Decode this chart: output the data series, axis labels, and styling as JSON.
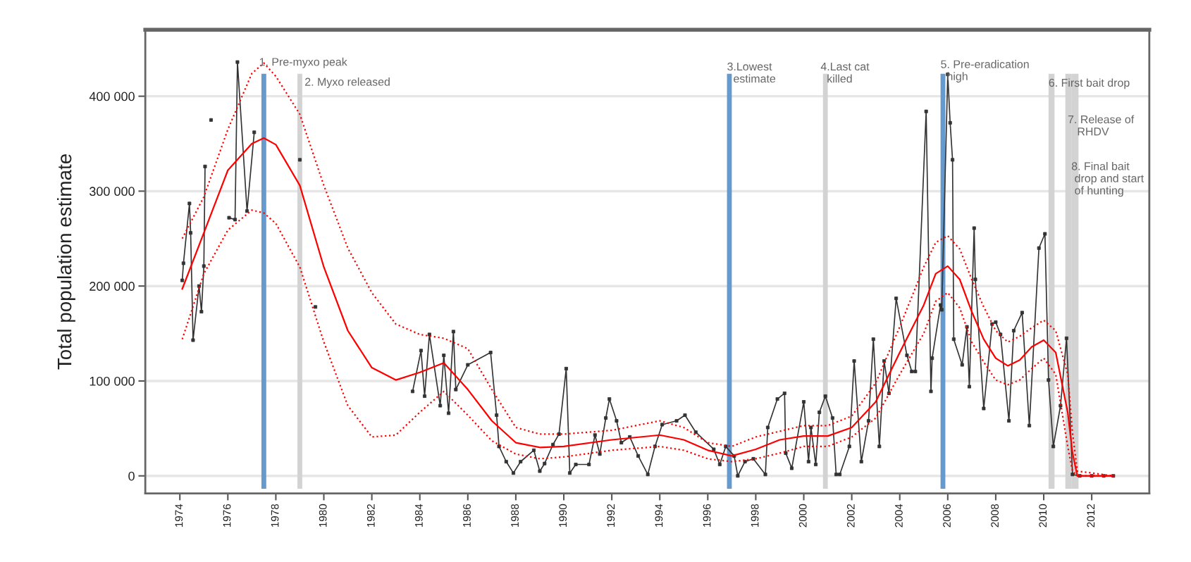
{
  "chart_data": {
    "type": "line",
    "ylabel": "Total population estimate",
    "xlim": [
      1972.56,
      2014.4
    ],
    "ylim": [
      -18500,
      470000
    ],
    "xticks": [
      1974,
      1976,
      1978,
      1980,
      1982,
      1984,
      1986,
      1988,
      1990,
      1992,
      1994,
      1996,
      1998,
      2000,
      2002,
      2004,
      2006,
      2008,
      2010,
      2012
    ],
    "yticks": [
      {
        "value": 0,
        "label": "0"
      },
      {
        "value": 100000,
        "label": "100 000"
      },
      {
        "value": 200000,
        "label": "200 000"
      },
      {
        "value": 300000,
        "label": "300 000"
      },
      {
        "value": 400000,
        "label": "400 000"
      }
    ],
    "grid": "y",
    "legend": false,
    "series": [
      {
        "color": "#333333",
        "marker": "square",
        "line_style": "solid",
        "x": [
          1974.1,
          1974.15,
          1974.4,
          1974.45,
          1974.55,
          1974.8,
          1974.9,
          1975.0,
          1975.05,
          1975.2,
          1975.3,
          1975.6,
          1976.05,
          1976.3,
          1976.4,
          1976.8,
          1977.1,
          1978.0,
          1979.0,
          1979.3,
          1979.65,
          1981.0,
          1983.7,
          1984.05,
          1984.2,
          1984.4,
          1984.85,
          1985.0,
          1985.2,
          1985.4,
          1985.5,
          1986.0,
          1986.95,
          1987.2,
          1987.3,
          1987.6,
          1987.9,
          1988.2,
          1988.75,
          1989.0,
          1989.2,
          1989.55,
          1989.8,
          1990.1,
          1990.25,
          1990.5,
          1991.05,
          1991.3,
          1991.5,
          1991.75,
          1991.9,
          1992.2,
          1992.4,
          1992.75,
          1993.1,
          1993.5,
          1993.8,
          1994.1,
          1994.7,
          1995.05,
          1995.5,
          1996.25,
          1996.5,
          1996.75,
          1997.1,
          1997.25,
          1997.55,
          1997.9,
          1998.4,
          1998.5,
          1998.9,
          1999.2,
          1999.25,
          1999.5,
          2000.0,
          2000.2,
          2000.3,
          2000.5,
          2000.65,
          2000.9,
          2001.2,
          2001.35,
          2001.5,
          2001.9,
          2002.1,
          2002.4,
          2002.7,
          2002.9,
          2003.15,
          2003.35,
          2003.55,
          2003.85,
          2004.3,
          2004.5,
          2004.65,
          2005.1,
          2005.3,
          2005.35,
          2005.7,
          2005.75,
          2006.0,
          2006.1,
          2006.2,
          2006.25,
          2006.6,
          2006.8,
          2006.9,
          2007.1,
          2007.15,
          2007.5,
          2007.85,
          2008.0,
          2008.2,
          2008.55,
          2008.75,
          2009.1,
          2009.4,
          2009.8,
          2010.05,
          2010.2,
          2010.4,
          2010.7,
          2010.95,
          2011.2,
          2011.5,
          2012.0,
          2012.5,
          2012.9
        ],
        "values": [
          206000,
          224000,
          287000,
          256000,
          143000,
          200000,
          173000,
          221000,
          326000,
          null,
          375000,
          null,
          272000,
          270000,
          436000,
          279000,
          362000,
          null,
          333000,
          null,
          178000,
          null,
          89000,
          132000,
          84000,
          149000,
          74000,
          127000,
          66000,
          152000,
          91000,
          117000,
          130000,
          64000,
          31000,
          15000,
          3000,
          15000,
          27000,
          5000,
          13000,
          33000,
          44000,
          113000,
          3000,
          12000,
          12000,
          43000,
          23000,
          61000,
          81000,
          58000,
          35000,
          41000,
          21000,
          1500,
          31000,
          54000,
          58000,
          64000,
          46000,
          28000,
          12000,
          31000,
          21000,
          0,
          15000,
          18000,
          1500,
          51000,
          81000,
          87000,
          24000,
          8000,
          78000,
          15000,
          51000,
          12000,
          67000,
          84000,
          61000,
          1500,
          1500,
          31000,
          121000,
          15000,
          58000,
          144000,
          31000,
          121000,
          87000,
          187000,
          127000,
          110000,
          110000,
          384000,
          89000,
          124000,
          180000,
          175000,
          423000,
          372000,
          333000,
          144000,
          117000,
          157000,
          94000,
          261000,
          207000,
          71000,
          160000,
          162000,
          149000,
          58000,
          153000,
          172000,
          53000,
          240000,
          255000,
          101000,
          31000,
          74000,
          145000,
          1500,
          0,
          0,
          0,
          0
        ]
      },
      {
        "color": "#ff0000",
        "line_style": "solid",
        "x": [
          1974.1,
          1975,
          1976,
          1977,
          1977.5,
          1978,
          1979,
          1980,
          1981,
          1982,
          1983,
          1984,
          1985,
          1986,
          1987,
          1988,
          1989,
          1990,
          1992,
          1994,
          1995,
          1996,
          1997,
          1998,
          1999,
          2000,
          2001,
          2002,
          2003,
          2004,
          2005,
          2005.5,
          2006,
          2006.5,
          2007,
          2007.5,
          2008,
          2008.5,
          2009,
          2009.5,
          2010,
          2010.5,
          2011,
          2011.2,
          2011.4,
          2012.9
        ],
        "values": [
          197000,
          256000,
          322000,
          350000,
          356000,
          349000,
          306000,
          220000,
          153000,
          114000,
          101000,
          109000,
          119000,
          91000,
          58000,
          35000,
          30000,
          31000,
          38000,
          43000,
          38000,
          27000,
          21000,
          28000,
          38000,
          42000,
          42000,
          51000,
          78000,
          130000,
          180000,
          213000,
          221000,
          207000,
          173000,
          144000,
          124000,
          116000,
          122000,
          136000,
          143000,
          130000,
          67000,
          24000,
          0,
          0
        ]
      },
      {
        "color": "#ff0000",
        "line_style": "dotted",
        "x": [
          1974.1,
          1975,
          1976,
          1977,
          1977.5,
          1978,
          1979,
          1980,
          1981,
          1982,
          1983,
          1984,
          1985,
          1986,
          1987,
          1988,
          1989,
          1990,
          1992,
          1994,
          1995,
          1996,
          1997,
          1998,
          1999,
          2000,
          2001,
          2002,
          2003,
          2004,
          2005,
          2005.5,
          2006,
          2006.5,
          2007,
          2007.5,
          2008,
          2008.5,
          2009,
          2009.5,
          2010,
          2010.5,
          2011,
          2011.2,
          2011.4,
          2012.9
        ],
        "values": [
          250000,
          294000,
          365000,
          424000,
          435000,
          421000,
          381000,
          306000,
          240000,
          193000,
          160000,
          149000,
          145000,
          134000,
          91000,
          51000,
          44000,
          44000,
          48000,
          58000,
          51000,
          35000,
          31000,
          41000,
          47000,
          53000,
          53000,
          63000,
          98000,
          157000,
          220000,
          246000,
          253000,
          239000,
          207000,
          178000,
          153000,
          141000,
          147000,
          156000,
          164000,
          153000,
          107000,
          45000,
          5000,
          0
        ]
      },
      {
        "color": "#ff0000",
        "line_style": "dotted",
        "x": [
          1974.1,
          1975,
          1976,
          1977,
          1977.5,
          1978,
          1979,
          1980,
          1981,
          1982,
          1983,
          1984,
          1985,
          1986,
          1987,
          1988,
          1989,
          1990,
          1992,
          1994,
          1995,
          1996,
          1997,
          1998,
          1999,
          2000,
          2001,
          2002,
          2003,
          2004,
          2005,
          2005.5,
          2006,
          2006.5,
          2007,
          2007.5,
          2008,
          2008.5,
          2009,
          2009.5,
          2010,
          2010.5,
          2011,
          2011.2,
          2011.4,
          2012.9
        ],
        "values": [
          144000,
          213000,
          259000,
          280000,
          277000,
          266000,
          220000,
          141000,
          74000,
          41000,
          43000,
          67000,
          89000,
          64000,
          37000,
          23000,
          18000,
          20000,
          27000,
          31000,
          27000,
          18000,
          15000,
          18000,
          24000,
          31000,
          31000,
          41000,
          61000,
          107000,
          150000,
          184000,
          193000,
          177000,
          141000,
          120000,
          101000,
          96000,
          101000,
          113000,
          124000,
          107000,
          31000,
          5000,
          0,
          0
        ]
      }
    ],
    "bands": [
      {
        "axis": "x",
        "from": 1977.4,
        "to": 1977.6,
        "label": "1. Pre-myxo peak",
        "color": "#6699cc"
      },
      {
        "axis": "x",
        "from": 1978.9,
        "to": 1979.1,
        "label": "2. Myxo released",
        "color": "#d3d3d3"
      },
      {
        "axis": "x",
        "from": 1996.8,
        "to": 1997.0,
        "label": "3.Lowest\n  estimate",
        "color": "#6699cc"
      },
      {
        "axis": "x",
        "from": 2000.8,
        "to": 2001.0,
        "label": "4.Last cat\n  killed",
        "color": "#d3d3d3"
      },
      {
        "axis": "x",
        "from": 2005.7,
        "to": 2005.9,
        "label": "5. Pre-eradication\n  high",
        "color": "#6699cc"
      },
      {
        "axis": "x",
        "from": 2010.2,
        "to": 2010.45,
        "label": "6. First bait drop",
        "color": "#d3d3d3"
      },
      {
        "axis": "x",
        "from": 2010.9,
        "to": 2011.15,
        "label": "7. Release of\n   RHDV",
        "color": "#d3d3d3"
      },
      {
        "axis": "x",
        "from": 2011.15,
        "to": 2011.45,
        "label": "8. Final bait\n drop and start\n of hunting",
        "color": "#d3d3d3"
      }
    ]
  }
}
